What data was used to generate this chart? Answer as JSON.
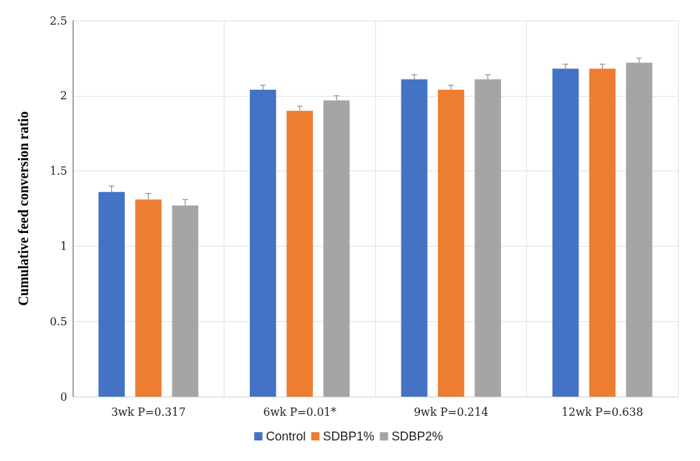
{
  "chart_data": {
    "type": "bar",
    "ylabel": "Cumulative feed conversion ratio",
    "categories": [
      "3wk P=0.317",
      "6wk P=0.01*",
      "9wk P=0.214",
      "12wk P=0.638"
    ],
    "series": [
      {
        "name": "Control",
        "color": "#4472c4",
        "values": [
          1.36,
          2.04,
          2.11,
          2.18
        ],
        "errors": [
          0.04,
          0.03,
          0.03,
          0.03
        ]
      },
      {
        "name": "SDBP1%",
        "color": "#ed7d31",
        "values": [
          1.31,
          1.9,
          2.04,
          2.18
        ],
        "errors": [
          0.04,
          0.03,
          0.03,
          0.03
        ]
      },
      {
        "name": "SDBP2%",
        "color": "#a5a5a5",
        "values": [
          1.27,
          1.97,
          2.11,
          2.22
        ],
        "errors": [
          0.04,
          0.03,
          0.03,
          0.03
        ]
      }
    ],
    "ylim": [
      0,
      2.5
    ],
    "yticks": [
      0,
      0.5,
      1,
      1.5,
      2,
      2.5
    ],
    "grid": true,
    "legend": "bottom"
  }
}
